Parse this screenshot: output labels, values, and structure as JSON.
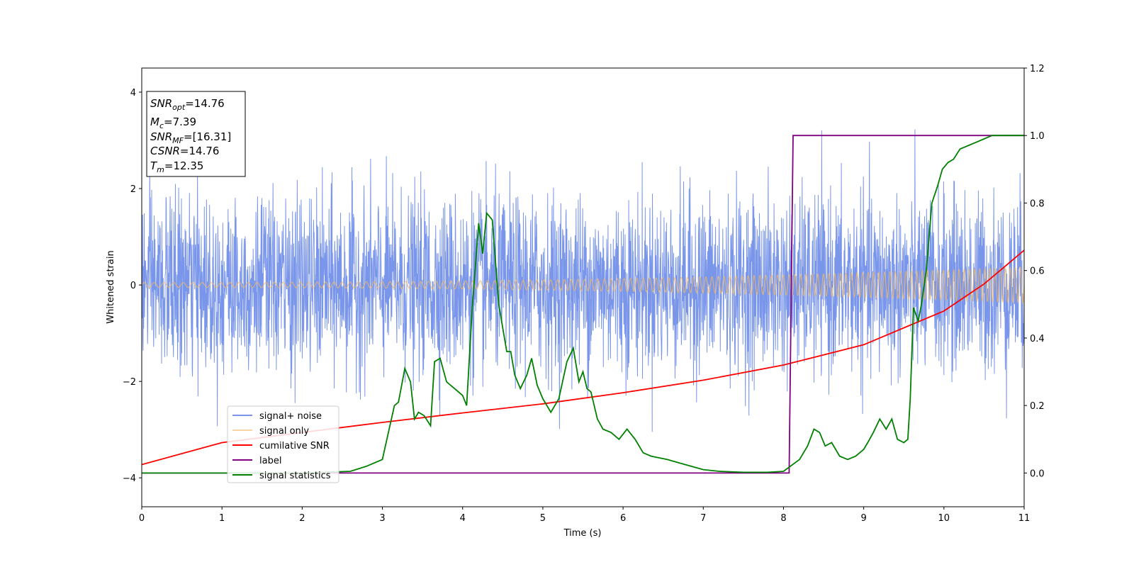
{
  "chart_data": {
    "type": "line",
    "xlabel": "Time (s)",
    "ylabel": "Whitened strain",
    "xlim": [
      0,
      11
    ],
    "ylim": [
      -4.6,
      4.5
    ],
    "y2lim": [
      -0.1,
      1.2
    ],
    "x_ticks": [
      "0",
      "1",
      "2",
      "3",
      "4",
      "5",
      "6",
      "7",
      "8",
      "9",
      "10",
      "11"
    ],
    "y_ticks": [
      "−4",
      "−2",
      "0",
      "2",
      "4"
    ],
    "y2_ticks": [
      "0.0",
      "0.2",
      "0.4",
      "0.6",
      "0.8",
      "1.0",
      "1.2"
    ],
    "grid": false,
    "legend_placement": "lower-left",
    "info_box": {
      "lines": [
        {
          "main": "SNR",
          "sub": "opt",
          "rest": "=14.76"
        },
        {
          "main": "M",
          "sub": "c",
          "rest": "=7.39"
        },
        {
          "main": "SNR",
          "sub": "MF",
          "rest": "=[16.31]"
        },
        {
          "main": "CSNR",
          "sub": "",
          "rest": "=14.76"
        },
        {
          "main": "T",
          "sub": "m",
          "rest": "=12.35"
        }
      ]
    },
    "series": [
      {
        "name": "signal+ noise",
        "color": "#4169e1",
        "axis": "left",
        "kind": "noise",
        "std": 0.9,
        "max_abs": 4.05
      },
      {
        "name": "signal only",
        "color": "#f4b860",
        "axis": "left",
        "kind": "chirp",
        "amp_start": 0.05,
        "amp_end": 0.37
      },
      {
        "name": "cumilative SNR",
        "color": "#ff0000",
        "axis": "right",
        "x": [
          0,
          1,
          2,
          3,
          4,
          5,
          6,
          7,
          8,
          9,
          10,
          10.5,
          11
        ],
        "y": [
          0.025,
          0.09,
          0.12,
          0.15,
          0.178,
          0.205,
          0.238,
          0.275,
          0.32,
          0.38,
          0.48,
          0.56,
          0.66
        ]
      },
      {
        "name": "label",
        "color": "#800080",
        "axis": "right",
        "x": [
          0,
          8.07,
          8.12,
          11
        ],
        "y": [
          0,
          0,
          1,
          1
        ]
      },
      {
        "name": "signal statistics",
        "color": "#008000",
        "axis": "right",
        "x": [
          0,
          1,
          2,
          2.6,
          2.8,
          3.0,
          3.15,
          3.2,
          3.28,
          3.35,
          3.4,
          3.45,
          3.52,
          3.6,
          3.65,
          3.72,
          3.8,
          3.9,
          4.0,
          4.05,
          4.12,
          4.2,
          4.25,
          4.3,
          4.37,
          4.45,
          4.5,
          4.55,
          4.6,
          4.65,
          4.72,
          4.8,
          4.86,
          4.93,
          5.0,
          5.05,
          5.1,
          5.2,
          5.3,
          5.38,
          5.45,
          5.5,
          5.55,
          5.6,
          5.68,
          5.75,
          5.85,
          5.95,
          6.05,
          6.15,
          6.25,
          6.35,
          6.45,
          6.55,
          6.7,
          6.85,
          7.0,
          7.2,
          7.5,
          7.8,
          8.0,
          8.2,
          8.3,
          8.38,
          8.45,
          8.52,
          8.6,
          8.7,
          8.8,
          8.9,
          9.0,
          9.05,
          9.12,
          9.2,
          9.28,
          9.35,
          9.42,
          9.5,
          9.55,
          9.58,
          9.62,
          9.68,
          9.72,
          9.78,
          9.85,
          9.92,
          9.98,
          10.05,
          10.12,
          10.2,
          10.3,
          10.4,
          10.5,
          10.6,
          11
        ],
        "y": [
          0,
          0,
          0,
          0.005,
          0.02,
          0.04,
          0.2,
          0.21,
          0.31,
          0.27,
          0.16,
          0.18,
          0.17,
          0.14,
          0.33,
          0.34,
          0.27,
          0.25,
          0.23,
          0.2,
          0.49,
          0.74,
          0.65,
          0.77,
          0.75,
          0.5,
          0.43,
          0.36,
          0.36,
          0.29,
          0.25,
          0.29,
          0.34,
          0.26,
          0.22,
          0.2,
          0.18,
          0.22,
          0.33,
          0.37,
          0.27,
          0.3,
          0.25,
          0.24,
          0.16,
          0.13,
          0.12,
          0.1,
          0.13,
          0.1,
          0.06,
          0.05,
          0.045,
          0.04,
          0.03,
          0.02,
          0.01,
          0.005,
          0.002,
          0.002,
          0.005,
          0.04,
          0.08,
          0.13,
          0.12,
          0.08,
          0.09,
          0.05,
          0.04,
          0.05,
          0.07,
          0.09,
          0.12,
          0.16,
          0.13,
          0.16,
          0.1,
          0.09,
          0.1,
          0.22,
          0.49,
          0.45,
          0.5,
          0.6,
          0.8,
          0.85,
          0.9,
          0.92,
          0.93,
          0.96,
          0.97,
          0.98,
          0.99,
          1.0,
          1.0
        ]
      }
    ]
  }
}
